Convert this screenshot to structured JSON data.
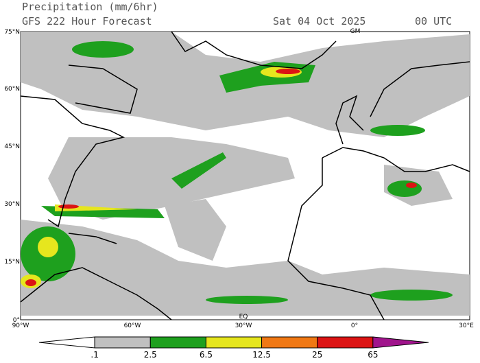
{
  "header": {
    "title": "Precipitation (mm/6hr)",
    "subtitle": "GFS 222 Hour Forecast",
    "date": "Sat 04 Oct 2025",
    "time": "00 UTC"
  },
  "map": {
    "lat_labels": [
      "75°N",
      "60°N",
      "45°N",
      "30°N",
      "15°N",
      "0°"
    ],
    "lon_labels": [
      "90°W",
      "60°W",
      "30°W",
      "0°",
      "30°E"
    ],
    "inner_labels": [
      "GM",
      "EQ"
    ]
  },
  "colorbar": {
    "labels": [
      ".1",
      "2.5",
      "6.5",
      "12.5",
      "25",
      "65"
    ],
    "colors": [
      "#ffffff",
      "#c0c0c0",
      "#1ea01e",
      "#e6e61e",
      "#f07814",
      "#dc1414",
      "#a0148c"
    ]
  }
}
